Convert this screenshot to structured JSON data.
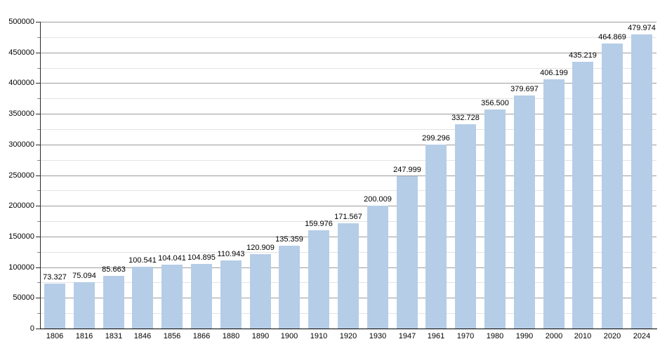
{
  "chart_data": {
    "type": "bar",
    "title": "",
    "xlabel": "",
    "ylabel": "",
    "categories": [
      "1806",
      "1816",
      "1831",
      "1846",
      "1856",
      "1866",
      "1880",
      "1890",
      "1900",
      "1910",
      "1920",
      "1930",
      "1947",
      "1961",
      "1970",
      "1980",
      "1990",
      "2000",
      "2010",
      "2020",
      "2024"
    ],
    "values": [
      73327,
      75094,
      85663,
      100541,
      104041,
      104895,
      110943,
      120909,
      135359,
      159976,
      171567,
      200009,
      247999,
      299296,
      332728,
      356500,
      379697,
      406199,
      435219,
      464869,
      479974
    ],
    "value_labels": [
      "73.327",
      "75.094",
      "85.663",
      "100.541",
      "104.041",
      "104.895",
      "110.943",
      "120.909",
      "135.359",
      "159.976",
      "171.567",
      "200.009",
      "247.999",
      "299.296",
      "332.728",
      "356.500",
      "379.697",
      "406.199",
      "435.219",
      "464.869",
      "479.974"
    ],
    "ylim": [
      0,
      500000
    ],
    "y_major_step": 50000,
    "y_minor_step": 25000,
    "y_tick_labels": [
      "0",
      "50000",
      "100000",
      "150000",
      "200000",
      "250000",
      "300000",
      "350000",
      "400000",
      "450000",
      "500000"
    ],
    "grid": "horizontal, major and minor, no vertical gridlines",
    "legend_position": "none",
    "colors": {
      "bar": "#b5cde7",
      "grid_major": "#9c9c9c",
      "grid_minor": "#e3e3e3",
      "axis": "#000000",
      "text": "#000000",
      "background": "#ffffff"
    }
  }
}
